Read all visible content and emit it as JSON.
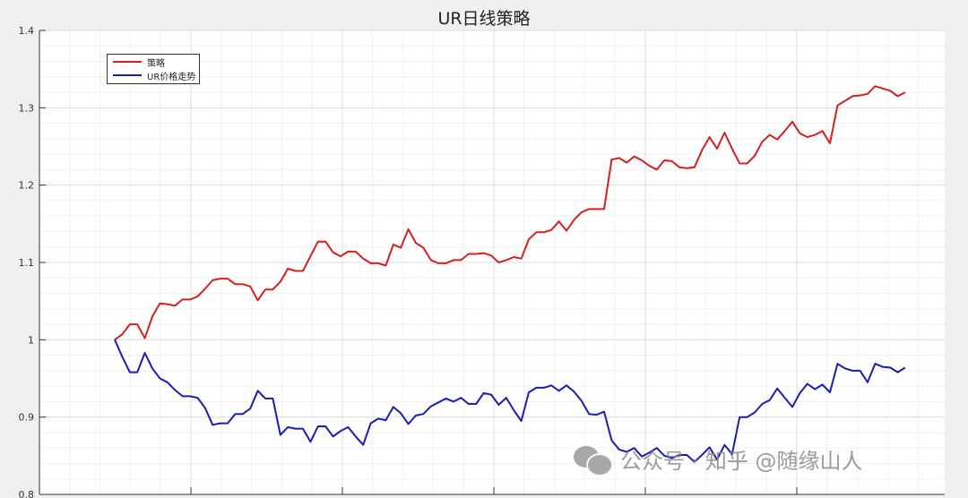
{
  "chart_data": {
    "type": "line",
    "title": "UR日线策略",
    "xlabel": "",
    "ylabel": "",
    "ylim": [
      0.8,
      1.4
    ],
    "yticks": [
      "0.8",
      "0.9",
      "1",
      "1.1",
      "1.2",
      "1.3",
      "1.4"
    ],
    "grid": true,
    "minor_grid": true,
    "legend_position": "top-left",
    "series": [
      {
        "name": "策略",
        "color": "#d42020",
        "values": [
          1.0,
          1.007,
          1.02,
          1.02,
          1.002,
          1.03,
          1.047,
          1.046,
          1.044,
          1.052,
          1.052,
          1.056,
          1.066,
          1.077,
          1.079,
          1.079,
          1.072,
          1.072,
          1.069,
          1.051,
          1.065,
          1.065,
          1.075,
          1.092,
          1.089,
          1.089,
          1.108,
          1.127,
          1.127,
          1.113,
          1.108,
          1.114,
          1.114,
          1.105,
          1.099,
          1.099,
          1.096,
          1.123,
          1.119,
          1.143,
          1.125,
          1.119,
          1.103,
          1.099,
          1.099,
          1.103,
          1.103,
          1.111,
          1.111,
          1.112,
          1.109,
          1.1,
          1.103,
          1.107,
          1.105,
          1.13,
          1.139,
          1.139,
          1.142,
          1.153,
          1.141,
          1.155,
          1.165,
          1.169,
          1.169,
          1.169,
          1.233,
          1.235,
          1.229,
          1.237,
          1.232,
          1.225,
          1.22,
          1.232,
          1.231,
          1.223,
          1.222,
          1.223,
          1.245,
          1.262,
          1.247,
          1.268,
          1.247,
          1.228,
          1.228,
          1.238,
          1.256,
          1.265,
          1.259,
          1.27,
          1.282,
          1.267,
          1.262,
          1.265,
          1.27,
          1.254,
          1.303,
          1.309,
          1.315,
          1.316,
          1.318,
          1.328,
          1.325,
          1.322,
          1.315,
          1.32
        ]
      },
      {
        "name": "UR价格走势",
        "color": "#1c1cb4",
        "values": [
          1.0,
          0.978,
          0.958,
          0.958,
          0.983,
          0.963,
          0.95,
          0.945,
          0.935,
          0.927,
          0.927,
          0.925,
          0.912,
          0.89,
          0.892,
          0.892,
          0.904,
          0.904,
          0.911,
          0.934,
          0.924,
          0.924,
          0.877,
          0.887,
          0.885,
          0.885,
          0.868,
          0.888,
          0.888,
          0.875,
          0.882,
          0.887,
          0.875,
          0.864,
          0.892,
          0.898,
          0.896,
          0.913,
          0.905,
          0.891,
          0.902,
          0.904,
          0.914,
          0.919,
          0.924,
          0.92,
          0.925,
          0.917,
          0.917,
          0.931,
          0.929,
          0.916,
          0.925,
          0.909,
          0.895,
          0.932,
          0.938,
          0.938,
          0.941,
          0.934,
          0.941,
          0.933,
          0.921,
          0.904,
          0.903,
          0.907,
          0.87,
          0.858,
          0.855,
          0.86,
          0.849,
          0.854,
          0.86,
          0.85,
          0.847,
          0.851,
          0.851,
          0.842,
          0.851,
          0.861,
          0.845,
          0.864,
          0.852,
          0.9,
          0.9,
          0.906,
          0.917,
          0.922,
          0.937,
          0.925,
          0.913,
          0.931,
          0.943,
          0.936,
          0.942,
          0.932,
          0.969,
          0.963,
          0.96,
          0.96,
          0.945,
          0.969,
          0.965,
          0.964,
          0.958,
          0.964
        ]
      }
    ]
  },
  "watermark": {
    "text": "公众号 · 知乎 @随缘山人",
    "icon": "wechat-icon"
  }
}
